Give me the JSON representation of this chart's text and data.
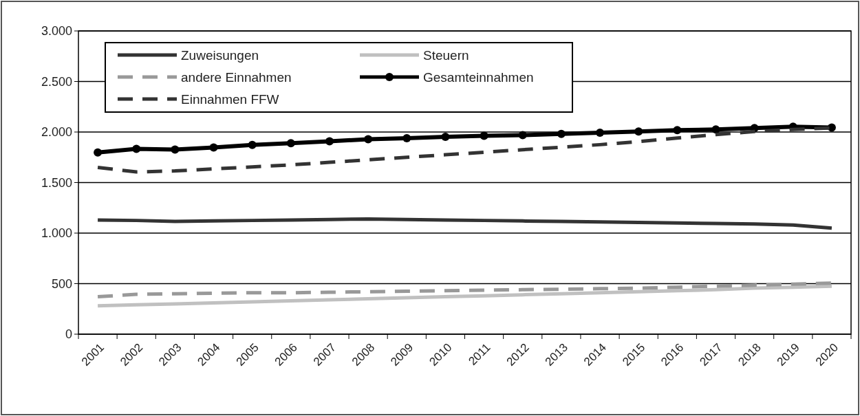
{
  "chart_data": {
    "type": "line",
    "categories": [
      "2001",
      "2002",
      "2003",
      "2004",
      "2005",
      "2006",
      "2007",
      "2008",
      "2009",
      "2010",
      "2011",
      "2012",
      "2013",
      "2014",
      "2015",
      "2016",
      "2017",
      "2018",
      "2019",
      "2020"
    ],
    "series": [
      {
        "name": "Zuweisungen",
        "color": "#333333",
        "line_style": "solid",
        "marker": "none",
        "values": [
          1130,
          1125,
          1115,
          1120,
          1125,
          1130,
          1135,
          1140,
          1135,
          1130,
          1125,
          1120,
          1115,
          1110,
          1105,
          1100,
          1095,
          1090,
          1080,
          1050
        ]
      },
      {
        "name": "Steuern",
        "color": "#c0c0c0",
        "line_style": "solid",
        "marker": "none",
        "values": [
          280,
          290,
          300,
          310,
          320,
          330,
          340,
          350,
          360,
          370,
          380,
          390,
          400,
          410,
          420,
          430,
          440,
          455,
          465,
          475
        ]
      },
      {
        "name": "andere Einnahmen",
        "color": "#999999",
        "line_style": "dashed",
        "marker": "none",
        "values": [
          370,
          395,
          400,
          405,
          410,
          410,
          415,
          420,
          425,
          430,
          435,
          440,
          445,
          450,
          455,
          465,
          475,
          485,
          495,
          505
        ]
      },
      {
        "name": "Gesamteinnahmen",
        "color": "#000000",
        "line_style": "solid",
        "marker": "circle",
        "values": [
          1797,
          1834,
          1827,
          1847,
          1872,
          1889,
          1908,
          1929,
          1938,
          1953,
          1962,
          1969,
          1982,
          1993,
          2005,
          2018,
          2026,
          2039,
          2052,
          2045
        ]
      },
      {
        "name": "Einnahmen FFW",
        "color": "#333333",
        "line_style": "dashed",
        "marker": "none",
        "values": [
          1650,
          1605,
          1615,
          1635,
          1655,
          1675,
          1700,
          1725,
          1750,
          1775,
          1800,
          1825,
          1850,
          1875,
          1905,
          1940,
          1975,
          2005,
          2025,
          2040
        ]
      }
    ],
    "ylim": [
      0,
      3000
    ],
    "yticks": [
      0,
      500,
      {
        "value": 1000,
        "label": "1.000"
      },
      {
        "value": 1500,
        "label": "1.500"
      },
      {
        "value": 2000,
        "label": "2.000"
      },
      {
        "value": 2500,
        "label": "2.500"
      },
      {
        "value": 3000,
        "label": "3.000"
      }
    ],
    "grid": "y",
    "legend": "top left"
  }
}
